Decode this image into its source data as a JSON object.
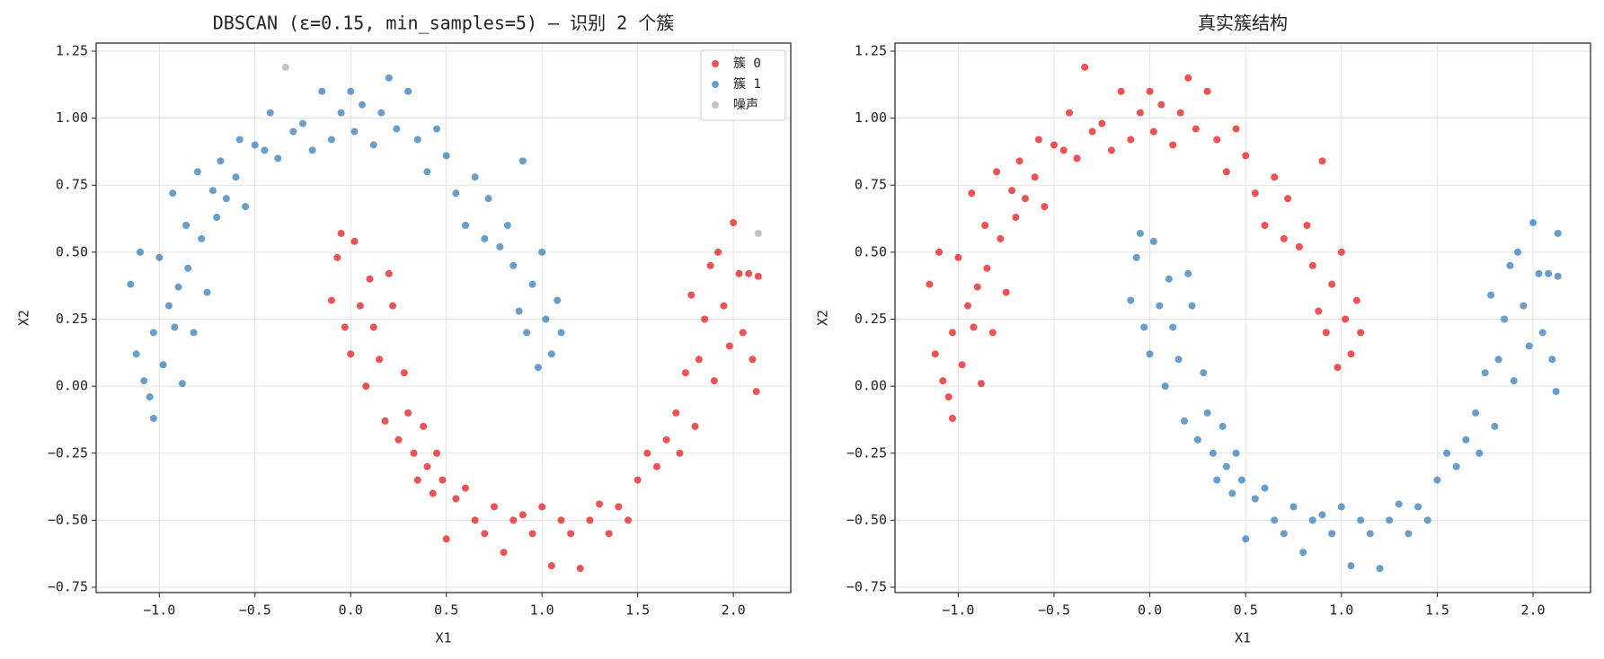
{
  "chart_data": [
    {
      "type": "scatter",
      "title": "DBSCAN (ε=0.15, min_samples=5) — 识别 2 个簇",
      "xlabel": "X1",
      "ylabel": "X2",
      "xlim": [
        -1.33,
        2.3
      ],
      "ylim": [
        -0.77,
        1.28
      ],
      "xticks": [
        {
          "value": -1,
          "label": "−1.0"
        },
        {
          "value": -0.5,
          "label": "−0.5"
        },
        {
          "value": 0,
          "label": "0.0"
        },
        0.5,
        {
          "value": 1,
          "label": "1.0"
        },
        1.5,
        {
          "value": 2,
          "label": "2.0"
        }
      ],
      "yticks": [
        {
          "value": -0.75,
          "label": "−0.75"
        },
        {
          "value": -0.5,
          "label": "−0.50"
        },
        {
          "value": -0.25,
          "label": "−0.25"
        },
        {
          "value": 0,
          "label": "0.00"
        },
        0.25,
        {
          "value": 0.5,
          "label": "0.50"
        },
        0.75,
        {
          "value": 1,
          "label": "1.00"
        },
        1.25
      ],
      "grid": true,
      "legend": "upper right",
      "series": [
        {
          "name": "簇 0",
          "color": "#e41a1c",
          "x": [
            -0.1,
            -0.07,
            -0.05,
            -0.03,
            0.0,
            0.02,
            0.05,
            0.08,
            0.1,
            0.12,
            0.15,
            0.18,
            0.2,
            0.22,
            0.25,
            0.28,
            0.3,
            0.33,
            0.35,
            0.38,
            0.4,
            0.43,
            0.45,
            0.48,
            0.5,
            0.55,
            0.6,
            0.65,
            0.7,
            0.75,
            0.8,
            0.85,
            0.9,
            0.95,
            1.0,
            1.05,
            1.1,
            1.15,
            1.2,
            1.25,
            1.3,
            1.35,
            1.4,
            1.45,
            1.5,
            1.55,
            1.6,
            1.65,
            1.7,
            1.72,
            1.75,
            1.78,
            1.8,
            1.82,
            1.85,
            1.88,
            1.9,
            1.92,
            1.95,
            1.98,
            2.0,
            2.03,
            2.05,
            2.08,
            2.1,
            2.12,
            2.13
          ],
          "y": [
            0.32,
            0.48,
            0.57,
            0.22,
            0.12,
            0.54,
            0.3,
            0.0,
            0.4,
            0.22,
            0.1,
            -0.13,
            0.42,
            0.3,
            -0.2,
            0.05,
            -0.1,
            -0.25,
            -0.35,
            -0.15,
            -0.3,
            -0.4,
            -0.25,
            -0.35,
            -0.57,
            -0.42,
            -0.38,
            -0.5,
            -0.55,
            -0.45,
            -0.62,
            -0.5,
            -0.48,
            -0.55,
            -0.45,
            -0.67,
            -0.5,
            -0.55,
            -0.68,
            -0.5,
            -0.44,
            -0.55,
            -0.45,
            -0.5,
            -0.35,
            -0.25,
            -0.3,
            -0.2,
            -0.1,
            -0.25,
            0.05,
            0.34,
            -0.15,
            0.1,
            0.25,
            0.45,
            0.02,
            0.5,
            0.3,
            0.15,
            0.61,
            0.42,
            0.2,
            0.42,
            0.1,
            -0.02,
            0.41
          ]
        },
        {
          "name": "簇 1",
          "color": "#377eb8",
          "x": [
            -1.15,
            -1.12,
            -1.1,
            -1.08,
            -1.05,
            -1.03,
            -1.03,
            -1.0,
            -0.98,
            -0.95,
            -0.93,
            -0.92,
            -0.9,
            -0.88,
            -0.86,
            -0.85,
            -0.82,
            -0.8,
            -0.78,
            -0.75,
            -0.72,
            -0.7,
            -0.68,
            -0.65,
            -0.6,
            -0.58,
            -0.55,
            -0.5,
            -0.45,
            -0.42,
            -0.38,
            -0.3,
            -0.25,
            -0.2,
            -0.15,
            -0.1,
            -0.05,
            0.0,
            0.02,
            0.06,
            0.12,
            0.16,
            0.2,
            0.24,
            0.3,
            0.35,
            0.4,
            0.45,
            0.5,
            0.55,
            0.6,
            0.65,
            0.7,
            0.72,
            0.78,
            0.82,
            0.85,
            0.88,
            0.9,
            0.92,
            0.95,
            0.98,
            1.0,
            1.02,
            1.05,
            1.08,
            1.1
          ],
          "y": [
            0.38,
            0.12,
            0.5,
            0.02,
            -0.04,
            -0.12,
            0.2,
            0.48,
            0.08,
            0.3,
            0.72,
            0.22,
            0.37,
            0.01,
            0.6,
            0.44,
            0.2,
            0.8,
            0.55,
            0.35,
            0.73,
            0.63,
            0.84,
            0.7,
            0.78,
            0.92,
            0.67,
            0.9,
            0.88,
            1.02,
            0.85,
            0.95,
            0.98,
            0.88,
            1.1,
            0.92,
            1.02,
            1.1,
            0.95,
            1.05,
            0.9,
            1.02,
            1.15,
            0.96,
            1.1,
            0.92,
            0.8,
            0.96,
            0.86,
            0.72,
            0.6,
            0.78,
            0.55,
            0.7,
            0.52,
            0.6,
            0.45,
            0.28,
            0.84,
            0.2,
            0.38,
            0.07,
            0.5,
            0.25,
            0.12,
            0.32,
            0.2
          ]
        },
        {
          "name": "噪声",
          "color": "#b0b0b0",
          "x": [
            -0.34,
            2.13
          ],
          "y": [
            1.19,
            0.57
          ]
        }
      ]
    },
    {
      "type": "scatter",
      "title": "真实簇结构",
      "xlabel": "X1",
      "ylabel": "X2",
      "xlim": [
        -1.33,
        2.3
      ],
      "ylim": [
        -0.77,
        1.28
      ],
      "xticks": [
        {
          "value": -1,
          "label": "−1.0"
        },
        {
          "value": -0.5,
          "label": "−0.5"
        },
        {
          "value": 0,
          "label": "0.0"
        },
        0.5,
        {
          "value": 1,
          "label": "1.0"
        },
        1.5,
        {
          "value": 2,
          "label": "2.0"
        }
      ],
      "yticks": [
        {
          "value": -0.75,
          "label": "−0.75"
        },
        {
          "value": -0.5,
          "label": "−0.50"
        },
        {
          "value": -0.25,
          "label": "−0.25"
        },
        {
          "value": 0,
          "label": "0.00"
        },
        0.25,
        {
          "value": 0.5,
          "label": "0.50"
        },
        0.75,
        {
          "value": 1,
          "label": "1.00"
        },
        1.25
      ],
      "grid": true,
      "series": [
        {
          "color": "#e41a1c",
          "x": [
            -1.15,
            -1.12,
            -1.1,
            -1.08,
            -1.05,
            -1.03,
            -1.03,
            -1.0,
            -0.98,
            -0.95,
            -0.93,
            -0.92,
            -0.9,
            -0.88,
            -0.86,
            -0.85,
            -0.82,
            -0.8,
            -0.78,
            -0.75,
            -0.72,
            -0.7,
            -0.68,
            -0.65,
            -0.6,
            -0.58,
            -0.55,
            -0.5,
            -0.45,
            -0.42,
            -0.38,
            -0.3,
            -0.25,
            -0.2,
            -0.15,
            -0.1,
            -0.05,
            0.0,
            0.02,
            0.06,
            0.12,
            0.16,
            0.2,
            0.24,
            0.3,
            0.35,
            0.4,
            0.45,
            0.5,
            0.55,
            0.6,
            0.65,
            0.7,
            0.72,
            0.78,
            0.82,
            0.85,
            0.88,
            0.9,
            0.92,
            0.95,
            0.98,
            1.0,
            1.02,
            1.05,
            1.08,
            1.1,
            -0.34
          ],
          "y": [
            0.38,
            0.12,
            0.5,
            0.02,
            -0.04,
            -0.12,
            0.2,
            0.48,
            0.08,
            0.3,
            0.72,
            0.22,
            0.37,
            0.01,
            0.6,
            0.44,
            0.2,
            0.8,
            0.55,
            0.35,
            0.73,
            0.63,
            0.84,
            0.7,
            0.78,
            0.92,
            0.67,
            0.9,
            0.88,
            1.02,
            0.85,
            0.95,
            0.98,
            0.88,
            1.1,
            0.92,
            1.02,
            1.1,
            0.95,
            1.05,
            0.9,
            1.02,
            1.15,
            0.96,
            1.1,
            0.92,
            0.8,
            0.96,
            0.86,
            0.72,
            0.6,
            0.78,
            0.55,
            0.7,
            0.52,
            0.6,
            0.45,
            0.28,
            0.84,
            0.2,
            0.38,
            0.07,
            0.5,
            0.25,
            0.12,
            0.32,
            0.2,
            1.19
          ]
        },
        {
          "color": "#377eb8",
          "x": [
            -0.1,
            -0.07,
            -0.05,
            -0.03,
            0.0,
            0.02,
            0.05,
            0.08,
            0.1,
            0.12,
            0.15,
            0.18,
            0.2,
            0.22,
            0.25,
            0.28,
            0.3,
            0.33,
            0.35,
            0.38,
            0.4,
            0.43,
            0.45,
            0.48,
            0.5,
            0.55,
            0.6,
            0.65,
            0.7,
            0.75,
            0.8,
            0.85,
            0.9,
            0.95,
            1.0,
            1.05,
            1.1,
            1.15,
            1.2,
            1.25,
            1.3,
            1.35,
            1.4,
            1.45,
            1.5,
            1.55,
            1.6,
            1.65,
            1.7,
            1.72,
            1.75,
            1.78,
            1.8,
            1.82,
            1.85,
            1.88,
            1.9,
            1.92,
            1.95,
            1.98,
            2.0,
            2.03,
            2.05,
            2.08,
            2.1,
            2.12,
            2.13,
            2.13
          ],
          "y": [
            0.32,
            0.48,
            0.57,
            0.22,
            0.12,
            0.54,
            0.3,
            0.0,
            0.4,
            0.22,
            0.1,
            -0.13,
            0.42,
            0.3,
            -0.2,
            0.05,
            -0.1,
            -0.25,
            -0.35,
            -0.15,
            -0.3,
            -0.4,
            -0.25,
            -0.35,
            -0.57,
            -0.42,
            -0.38,
            -0.5,
            -0.55,
            -0.45,
            -0.62,
            -0.5,
            -0.48,
            -0.55,
            -0.45,
            -0.67,
            -0.5,
            -0.55,
            -0.68,
            -0.5,
            -0.44,
            -0.55,
            -0.45,
            -0.5,
            -0.35,
            -0.25,
            -0.3,
            -0.2,
            -0.1,
            -0.25,
            0.05,
            0.34,
            -0.15,
            0.1,
            0.25,
            0.45,
            0.02,
            0.5,
            0.3,
            0.15,
            0.61,
            0.42,
            0.2,
            0.42,
            0.1,
            -0.02,
            0.41,
            0.57
          ]
        }
      ]
    }
  ]
}
